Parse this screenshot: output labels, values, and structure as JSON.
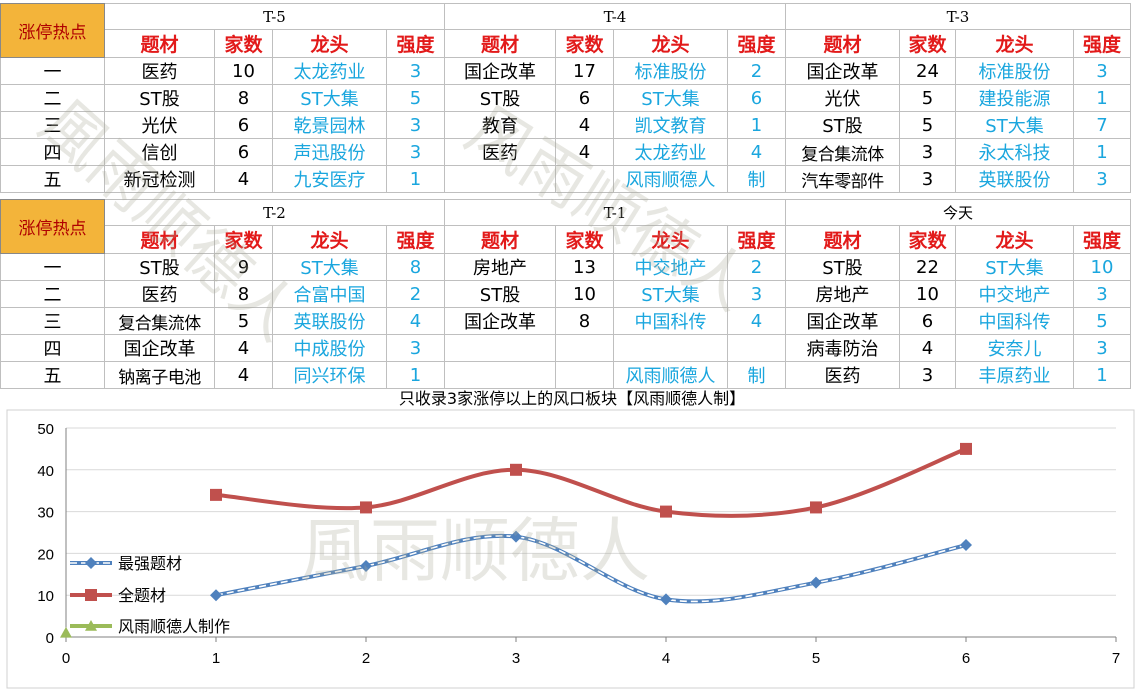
{
  "blocks": [
    {
      "label": "涨停热点",
      "periods": [
        {
          "name": "T-5",
          "headers": [
            "题材",
            "家数",
            "龙头",
            "强度"
          ],
          "rows": [
            [
              "医药",
              "10",
              "太龙药业",
              "3"
            ],
            [
              "ST股",
              "8",
              "ST大集",
              "5"
            ],
            [
              "光伏",
              "6",
              "乾景园林",
              "3"
            ],
            [
              "信创",
              "6",
              "声迅股份",
              "3"
            ],
            [
              "新冠检测",
              "4",
              "九安医疗",
              "1"
            ]
          ]
        },
        {
          "name": "T-4",
          "headers": [
            "题材",
            "家数",
            "龙头",
            "强度"
          ],
          "rows": [
            [
              "国企改革",
              "17",
              "标准股份",
              "2"
            ],
            [
              "ST股",
              "6",
              "ST大集",
              "6"
            ],
            [
              "教育",
              "4",
              "凯文教育",
              "1"
            ],
            [
              "医药",
              "4",
              "太龙药业",
              "4"
            ],
            [
              "",
              "",
              "风雨顺德人",
              "制"
            ]
          ]
        },
        {
          "name": "T-3",
          "headers": [
            "题材",
            "家数",
            "龙头",
            "强度"
          ],
          "rows": [
            [
              "国企改革",
              "24",
              "标准股份",
              "3"
            ],
            [
              "光伏",
              "5",
              "建投能源",
              "1"
            ],
            [
              "ST股",
              "5",
              "ST大集",
              "7"
            ],
            [
              "复合集流体",
              "3",
              "永太科技",
              "1"
            ],
            [
              "汽车零部件",
              "3",
              "英联股份",
              "3"
            ]
          ]
        }
      ]
    },
    {
      "label": "涨停热点",
      "periods": [
        {
          "name": "T-2",
          "headers": [
            "题材",
            "家数",
            "龙头",
            "强度"
          ],
          "rows": [
            [
              "ST股",
              "9",
              "ST大集",
              "8"
            ],
            [
              "医药",
              "8",
              "合富中国",
              "2"
            ],
            [
              "复合集流体",
              "5",
              "英联股份",
              "4"
            ],
            [
              "国企改革",
              "4",
              "中成股份",
              "3"
            ],
            [
              "钠离子电池",
              "4",
              "同兴环保",
              "1"
            ]
          ]
        },
        {
          "name": "T-1",
          "headers": [
            "题材",
            "家数",
            "龙头",
            "强度"
          ],
          "rows": [
            [
              "房地产",
              "13",
              "中交地产",
              "2"
            ],
            [
              "ST股",
              "10",
              "ST大集",
              "3"
            ],
            [
              "国企改革",
              "8",
              "中国科传",
              "4"
            ],
            [
              "",
              "",
              "",
              ""
            ],
            [
              "",
              "",
              "风雨顺德人",
              "制"
            ]
          ]
        },
        {
          "name": "今天",
          "headers": [
            "题材",
            "家数",
            "龙头",
            "强度"
          ],
          "rows": [
            [
              "ST股",
              "22",
              "ST大集",
              "10"
            ],
            [
              "房地产",
              "10",
              "中交地产",
              "3"
            ],
            [
              "国企改革",
              "6",
              "中国科传",
              "5"
            ],
            [
              "病毒防治",
              "4",
              "安奈儿",
              "3"
            ],
            [
              "医药",
              "3",
              "丰原药业",
              "1"
            ]
          ]
        }
      ]
    }
  ],
  "rank_labels": [
    "一",
    "二",
    "三",
    "四",
    "五"
  ],
  "watermarks": [
    "风雨顺德人",
    "風雨顺德人"
  ],
  "chart_data": {
    "type": "line",
    "title": "只收录3家涨停以上的风口板块【风雨顺德人制】",
    "xlim": [
      0,
      7
    ],
    "ylim": [
      0,
      50
    ],
    "x_ticks": [
      0,
      1,
      2,
      3,
      4,
      5,
      6,
      7
    ],
    "y_ticks": [
      0,
      10,
      20,
      30,
      40,
      50
    ],
    "grid": "horizontal",
    "legend_position": "left",
    "series": [
      {
        "name": "最强题材",
        "color": "#4f81bd",
        "style": "dashed",
        "marker": "diamond",
        "x": [
          1,
          2,
          3,
          4,
          5,
          6
        ],
        "y": [
          10,
          17,
          24,
          9,
          13,
          22
        ]
      },
      {
        "name": "全题材",
        "color": "#c0504d",
        "style": "solid",
        "marker": "square",
        "x": [
          1,
          2,
          3,
          4,
          5,
          6
        ],
        "y": [
          34,
          31,
          40,
          30,
          31,
          45
        ]
      },
      {
        "name": "风雨顺德人制作",
        "color": "#9bbb59",
        "style": "solid",
        "marker": "triangle",
        "x": [
          0
        ],
        "y": [
          1
        ]
      }
    ]
  }
}
